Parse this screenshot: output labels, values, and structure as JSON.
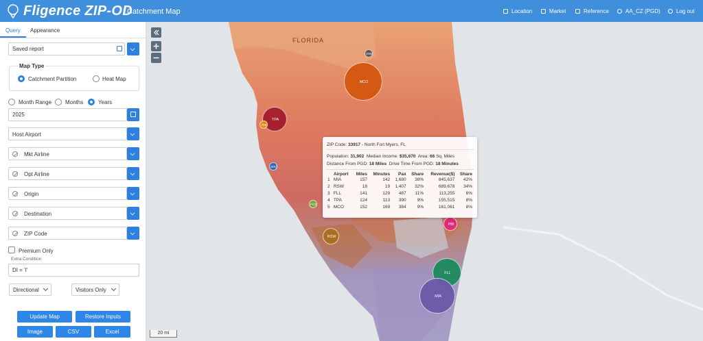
{
  "header": {
    "brand": "Fligence ZIP-OD",
    "subtitle": "Catchment Map",
    "nav": [
      "Location",
      "Market",
      "Reference",
      "AA_CZ (PGD)",
      "Log out"
    ]
  },
  "sidebar": {
    "tabs": [
      "Query",
      "Appearance"
    ],
    "saved_report": "Saved report",
    "map_type": {
      "title": "Map Type",
      "options": [
        "Catchment Partition",
        "Heat Map"
      ]
    },
    "period_options": [
      "Month Range",
      "Months",
      "Years"
    ],
    "year": "2025",
    "filters": [
      "Host Airport",
      "Mkt Airline",
      "Opt Airline",
      "Origin",
      "Destination",
      "ZIP Code"
    ],
    "premium_only": "Premium Only",
    "extra_condition_label": "Extra Condition",
    "extra_condition": "DI = 'I'",
    "direction": "Directional",
    "visitors": "Visitors Only",
    "buttons": [
      "Update Map",
      "Restore Inputs",
      "Image",
      "CSV",
      "Excel"
    ]
  },
  "map": {
    "state_label": "FLORIDA",
    "airports": [
      "GNV",
      "MCO",
      "TPA",
      "PIE",
      "SRQ",
      "PGD",
      "RSW",
      "PBI",
      "FLL",
      "MIA"
    ],
    "scale": "20 mi",
    "tooltip": {
      "zip_label": "ZIP Code:",
      "zip": "33917",
      "place": "- North Fort Myers, FL",
      "population_label": "Population:",
      "population": "31,902",
      "income_label": "Median Income:",
      "income": "$35,670",
      "area_label": "Area:",
      "area": "66",
      "area_unit": "Sq. Miles",
      "distance_label": "Distance From PGD:",
      "distance": "18 Miles",
      "drive_label": "Drive Time From PGD:",
      "drive": "18 Minutes",
      "table": {
        "headers": [
          "Airport",
          "Miles",
          "Minutes",
          "Pax",
          "Share",
          "Revenue($)",
          "Share"
        ],
        "rows": [
          [
            "1",
            "MIA",
            "157",
            "142",
            "1,680",
            "38%",
            "845,637",
            "42%"
          ],
          [
            "2",
            "RSW",
            "18",
            "19",
            "1,407",
            "32%",
            "689,678",
            "34%"
          ],
          [
            "3",
            "FLL",
            "141",
            "129",
            "487",
            "11%",
            "113,255",
            "6%"
          ],
          [
            "4",
            "TPA",
            "124",
            "113",
            "390",
            "9%",
            "155,515",
            "8%"
          ],
          [
            "5",
            "MCO",
            "152",
            "169",
            "384",
            "9%",
            "161,061",
            "8%"
          ]
        ]
      }
    }
  }
}
